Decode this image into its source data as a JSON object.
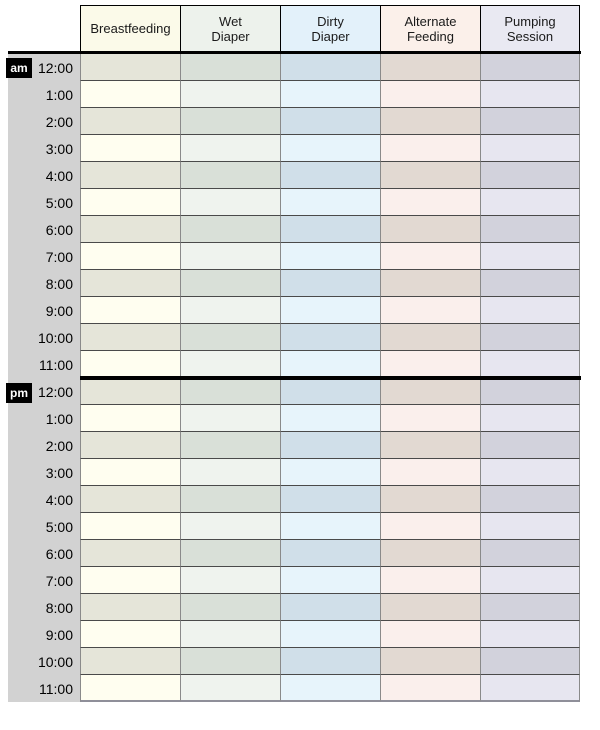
{
  "chart": {
    "columns": [
      {
        "id": "breastfeeding",
        "label": "Breastfeeding",
        "label_lines": [
          "Breastfeeding"
        ],
        "header_bg": "#fbfae9",
        "row_light": "#fffef0",
        "row_dark": "#e5e5d9"
      },
      {
        "id": "wet-diaper",
        "label": "Wet Diaper",
        "label_lines": [
          "Wet",
          "Diaper"
        ],
        "header_bg": "#edf2ec",
        "row_light": "#eff3ee",
        "row_dark": "#d9e0d8"
      },
      {
        "id": "dirty-diaper",
        "label": "Dirty Diaper",
        "label_lines": [
          "Dirty",
          "Diaper"
        ],
        "header_bg": "#e3f1fa",
        "row_light": "#e7f4fb",
        "row_dark": "#d0dfe9"
      },
      {
        "id": "alternate-feeding",
        "label": "Alternate Feeding",
        "label_lines": [
          "Alternate",
          "Feeding"
        ],
        "header_bg": "#fbf0ea",
        "row_light": "#faefec",
        "row_dark": "#e2d9d2"
      },
      {
        "id": "pumping-session",
        "label": "Pumping Session",
        "label_lines": [
          "Pumping",
          "Session"
        ],
        "header_bg": "#e9e9f2",
        "row_light": "#e7e6f0",
        "row_dark": "#d2d2dc"
      }
    ],
    "sections": [
      {
        "meridiem": "am",
        "times": [
          "12:00",
          "1:00",
          "2:00",
          "3:00",
          "4:00",
          "5:00",
          "6:00",
          "7:00",
          "8:00",
          "9:00",
          "10:00",
          "11:00"
        ]
      },
      {
        "meridiem": "pm",
        "times": [
          "12:00",
          "1:00",
          "2:00",
          "3:00",
          "4:00",
          "5:00",
          "6:00",
          "7:00",
          "8:00",
          "9:00",
          "10:00",
          "11:00"
        ]
      }
    ],
    "colors": {
      "page_bg": "#ffffff",
      "time_column_bg": "#d2d2d2",
      "badge_bg": "#000000",
      "badge_text": "#ffffff",
      "header_border": "#000000",
      "heavy_divider": "#000000",
      "row_divider": "#4a4a4a",
      "column_divider": "#8a8a8a",
      "bottom_border": "#8f8f99",
      "header_text": "#1a1a1a",
      "time_text": "#000000"
    }
  }
}
